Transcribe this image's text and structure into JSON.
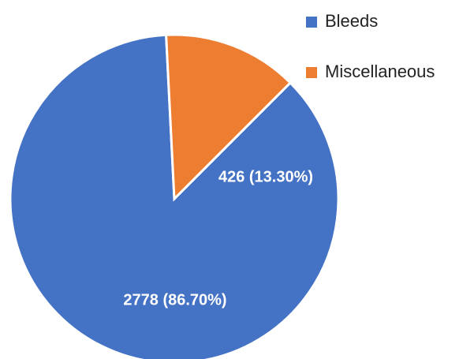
{
  "chart_data": {
    "type": "pie",
    "categories": [
      "Bleeds",
      "Miscellaneous"
    ],
    "values": [
      2778,
      426
    ],
    "value_labels": [
      "2778 (86.70%)",
      "426 (13.30%)"
    ],
    "colors": [
      "#4472c4",
      "#ed7d31"
    ],
    "legend": "upper right"
  }
}
